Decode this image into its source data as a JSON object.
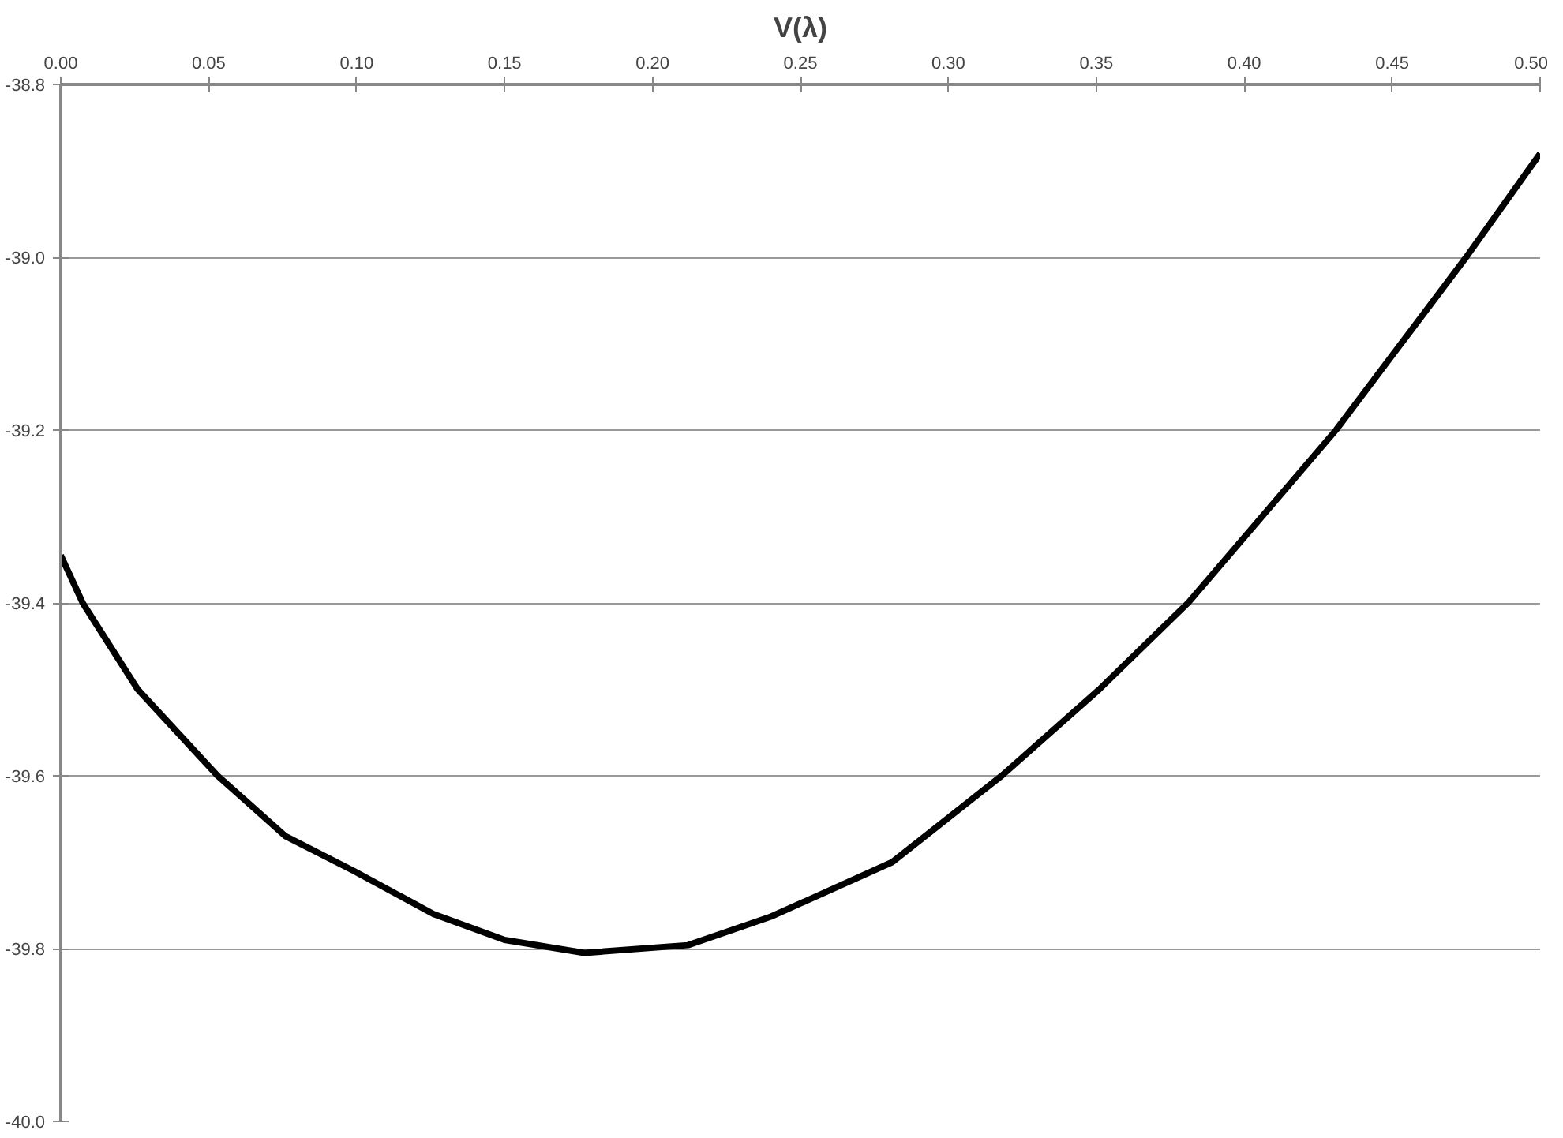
{
  "chart_data": {
    "type": "line",
    "title": "V(λ)",
    "x": [
      0,
      0.0074,
      0.026,
      0.053,
      0.076,
      0.099,
      0.126,
      0.15,
      0.177,
      0.212,
      0.24,
      0.281,
      0.318,
      0.351,
      0.381,
      0.431,
      0.475,
      0.5
    ],
    "series": [
      {
        "color": "#000000",
        "values": [
          -39.345,
          -39.4,
          -39.5,
          -39.6,
          -39.67,
          -39.71,
          -39.76,
          -39.79,
          -39.805,
          -39.796,
          -39.763,
          -39.7,
          -39.6,
          -39.5,
          -39.4,
          -39.2,
          -39.0,
          -38.88
        ]
      }
    ],
    "xlim": [
      0,
      0.5
    ],
    "xticks": [
      {
        "value": 0,
        "label": "0.00"
      },
      {
        "value": 0.05,
        "label": "0.05"
      },
      {
        "value": 0.1,
        "label": "0.10"
      },
      {
        "value": 0.15,
        "label": "0.15"
      },
      {
        "value": 0.2,
        "label": "0.20"
      },
      {
        "value": 0.25,
        "label": "0.25"
      },
      {
        "value": 0.3,
        "label": "0.30"
      },
      {
        "value": 0.35,
        "label": "0.35"
      },
      {
        "value": 0.4,
        "label": "0.40"
      },
      {
        "value": 0.45,
        "label": "0.45"
      },
      {
        "value": 0.5,
        "label": "0.50"
      }
    ],
    "ylim": [
      -40.0,
      -38.8
    ],
    "yticks": [
      {
        "value": -40,
        "label": "-40.0"
      },
      {
        "value": -39.8,
        "label": "-39.8"
      },
      {
        "value": -39.6,
        "label": "-39.6"
      },
      {
        "value": -39.4,
        "label": "-39.4"
      },
      {
        "value": -39.2,
        "label": "-39.2"
      },
      {
        "value": -39,
        "label": "-39.0"
      },
      {
        "value": -38.8,
        "label": "-38.8"
      }
    ],
    "grid": "y",
    "marker": "none",
    "line_style": "solid"
  }
}
